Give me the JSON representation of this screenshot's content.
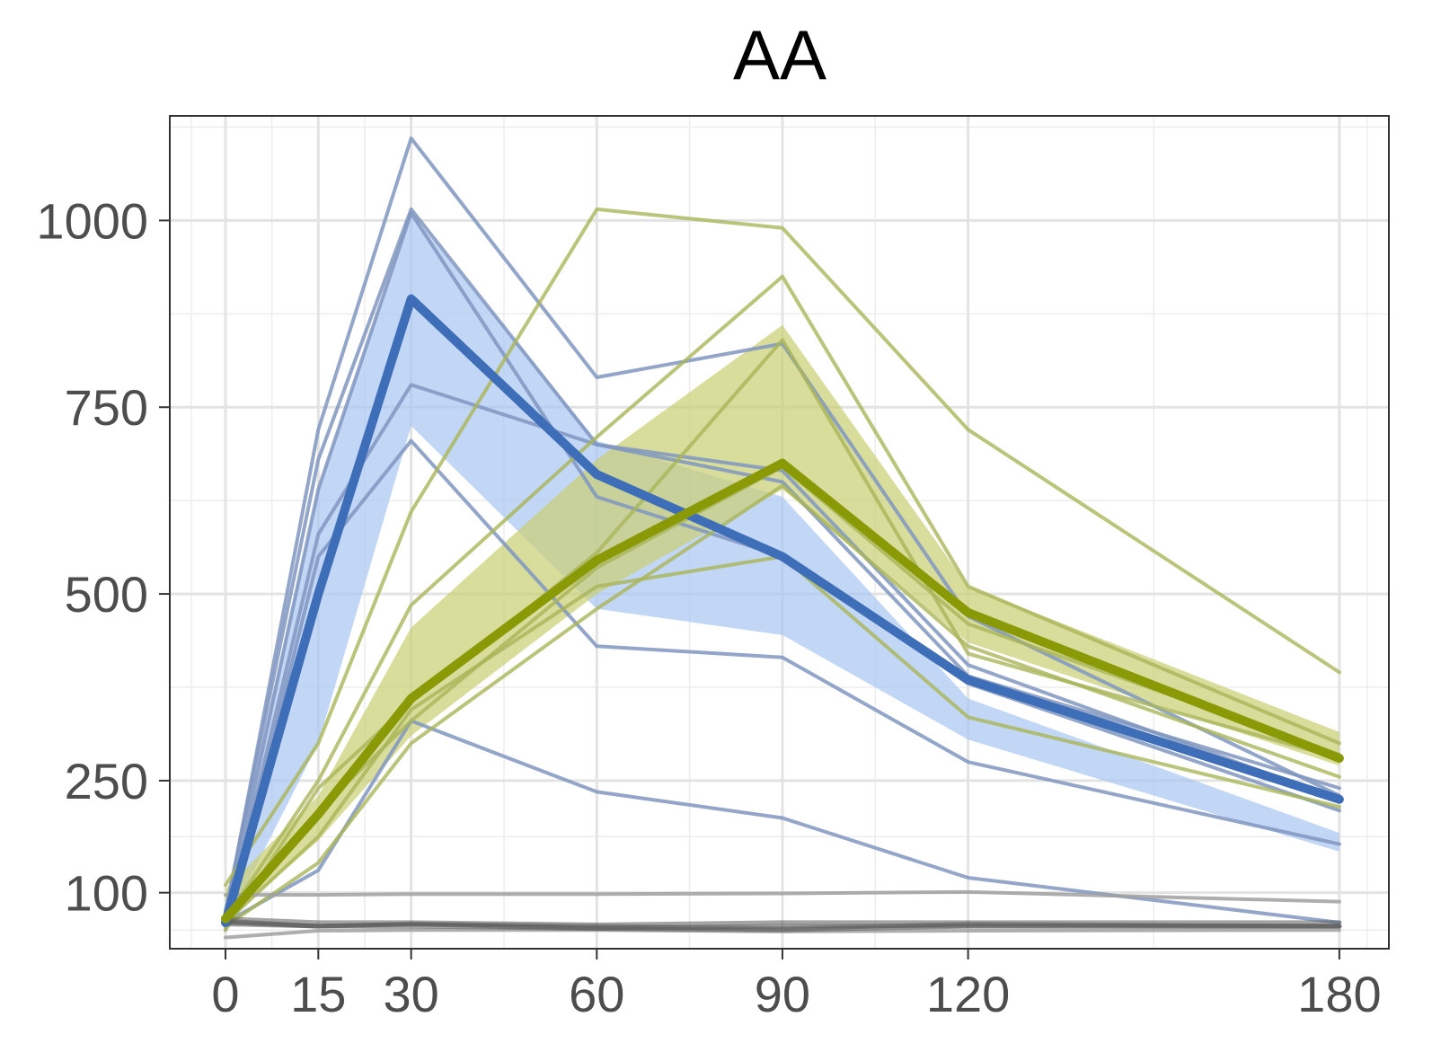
{
  "chart_data": {
    "type": "line",
    "title": "AA",
    "xlabel": "",
    "ylabel": "",
    "x": [
      0,
      15,
      30,
      60,
      90,
      120,
      180
    ],
    "xticks": [
      "0",
      "15",
      "30",
      "60",
      "90",
      "120",
      "180"
    ],
    "yticks": [
      100,
      250,
      500,
      750,
      1000
    ],
    "ytick_labels": [
      "100",
      "250",
      "500",
      "750",
      "1000"
    ],
    "ylim": [
      25,
      1140
    ],
    "xlim": [
      -9,
      188
    ],
    "grid": true,
    "colors": {
      "blue": "#3f6eb8",
      "blue_band": "#a8c6f2",
      "blue_thin": "#8097bf",
      "olive": "#8a9a07",
      "olive_band": "#c9cf72",
      "olive_thin": "#a9b559",
      "gray_thin": "#a0a0a0",
      "dark_gray": "#5a5a5a"
    },
    "bands": [
      {
        "group": "blue",
        "upper": [
          85,
          640,
          1010,
          705,
          630,
          360,
          180
        ],
        "lower": [
          55,
          300,
          725,
          480,
          445,
          305,
          155
        ]
      },
      {
        "group": "olive",
        "upper": [
          105,
          230,
          455,
          680,
          860,
          510,
          315
        ],
        "lower": [
          60,
          170,
          310,
          500,
          640,
          435,
          270
        ]
      }
    ],
    "series": [
      {
        "group": "blue_thin",
        "values": [
          70,
          720,
          1110,
          790,
          835,
          470,
          230
        ]
      },
      {
        "group": "blue_thin",
        "values": [
          75,
          680,
          1015,
          700,
          665,
          405,
          225
        ]
      },
      {
        "group": "blue_thin",
        "values": [
          60,
          640,
          1010,
          630,
          550,
          380,
          210
        ]
      },
      {
        "group": "blue_thin",
        "values": [
          55,
          580,
          780,
          700,
          650,
          390,
          240
        ]
      },
      {
        "group": "blue_thin",
        "values": [
          50,
          550,
          705,
          430,
          415,
          275,
          165
        ]
      },
      {
        "group": "blue_thin",
        "values": [
          60,
          130,
          330,
          235,
          200,
          120,
          60
        ]
      },
      {
        "group": "olive_thin",
        "values": [
          110,
          300,
          610,
          1015,
          990,
          720,
          395
        ]
      },
      {
        "group": "olive_thin",
        "values": [
          65,
          250,
          485,
          710,
          925,
          510,
          300
        ]
      },
      {
        "group": "olive_thin",
        "values": [
          50,
          240,
          355,
          555,
          840,
          420,
          280
        ]
      },
      {
        "group": "olive_thin",
        "values": [
          60,
          175,
          345,
          510,
          550,
          335,
          215
        ]
      },
      {
        "group": "olive_thin",
        "values": [
          70,
          210,
          330,
          535,
          670,
          460,
          285
        ]
      },
      {
        "group": "olive_thin",
        "values": [
          55,
          140,
          300,
          480,
          645,
          430,
          255
        ]
      },
      {
        "group": "gray_thin",
        "values": [
          97,
          97,
          98,
          98,
          99,
          101,
          88
        ]
      },
      {
        "group": "gray_thin",
        "values": [
          40,
          49,
          50,
          50,
          48,
          49,
          50
        ]
      },
      {
        "group": "dark_gray",
        "values": [
          60,
          55,
          58,
          55,
          52,
          58,
          55
        ]
      },
      {
        "group": "dark_gray",
        "values": [
          65,
          60,
          60,
          57,
          60,
          60,
          60
        ]
      },
      {
        "group": "dark_gray",
        "values": [
          58,
          55,
          55,
          52,
          50,
          55,
          55
        ]
      },
      {
        "group": "dark_gray",
        "values": [
          62,
          55,
          58,
          52,
          55,
          55,
          55
        ]
      },
      {
        "group": "blue",
        "values": [
          60,
          500,
          895,
          660,
          550,
          385,
          225
        ]
      },
      {
        "group": "olive",
        "values": [
          65,
          205,
          360,
          545,
          675,
          475,
          280
        ]
      }
    ]
  }
}
